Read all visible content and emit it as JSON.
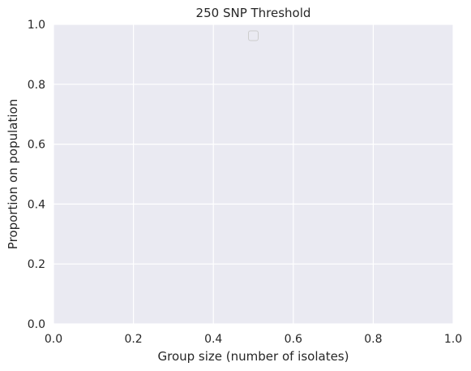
{
  "chart_data": {
    "type": "line",
    "title": "250 SNP Threshold",
    "xlabel": "Group size (number of isolates)",
    "ylabel": "Proportion on population",
    "xlim": [
      0,
      1
    ],
    "ylim": [
      0,
      1
    ],
    "xticks": [
      0.0,
      0.2,
      0.4,
      0.6,
      0.8,
      1.0
    ],
    "yticks": [
      0.0,
      0.2,
      0.4,
      0.6,
      0.8,
      1.0
    ],
    "xtick_labels": [
      "0.0",
      "0.2",
      "0.4",
      "0.6",
      "0.8",
      "1.0"
    ],
    "ytick_labels": [
      "0.0",
      "0.2",
      "0.4",
      "0.6",
      "0.8",
      "1.0"
    ],
    "series": [],
    "grid": true,
    "legend": "top-center",
    "colors": {
      "plot_background": "#eaeaf2",
      "grid": "#ffffff",
      "text": "#262626",
      "legend_border": "#cccccc"
    }
  }
}
